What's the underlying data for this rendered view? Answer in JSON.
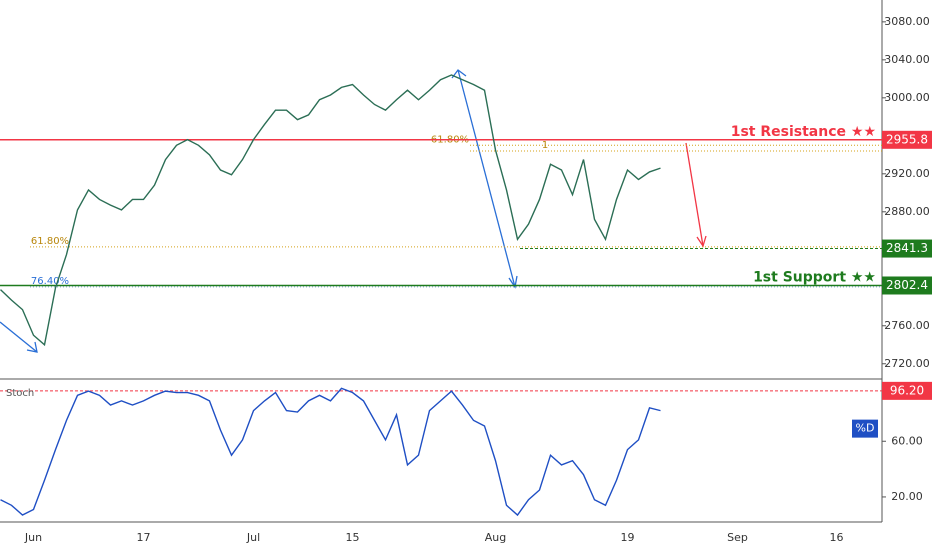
{
  "chart_data": [
    {
      "type": "line",
      "series": [
        {
          "color": "#2b6e55",
          "values": [
            2798,
            2787,
            2777,
            2750,
            2740,
            2800,
            2835,
            2882,
            2903,
            2893,
            2887,
            2882,
            2893,
            2893,
            2908,
            2935,
            2950,
            2956,
            2950,
            2940,
            2924,
            2919,
            2935,
            2956,
            2972,
            2987,
            2987,
            2977,
            2982,
            2998,
            3003,
            3011,
            3014,
            3003,
            2993,
            2987,
            2998,
            3008,
            2998,
            3008,
            3019,
            3024,
            3019,
            3014,
            3008,
            2945,
            2903,
            2851,
            2867,
            2893,
            2930,
            2924,
            2898,
            2935,
            2872,
            2851,
            2893,
            2924,
            2914,
            2922,
            2926,
            null,
            null,
            null,
            null,
            null,
            null,
            null,
            null,
            null,
            null,
            null,
            null,
            null,
            null,
            null,
            null,
            null,
            null,
            null
          ]
        }
      ],
      "ylim": [
        2705,
        3103
      ],
      "yticks": [
        {
          "value": 2720,
          "label": "2720.00"
        },
        {
          "value": 2760,
          "label": "2760.00"
        },
        {
          "value": 2800,
          "label": "2800.00"
        },
        {
          "value": 2840,
          "label": "2840.00"
        },
        {
          "value": 2880,
          "label": "2880.00"
        },
        {
          "value": 2920,
          "label": "2920.00"
        },
        {
          "value": 2960,
          "label": "2960.00"
        },
        {
          "value": 3000,
          "label": "3000.00"
        },
        {
          "value": 3040,
          "label": "3040.00"
        },
        {
          "value": 3080,
          "label": "3080.00"
        }
      ],
      "levels": [
        {
          "value": 2955.8,
          "label": "1st Resistance ★★",
          "color": "#f23645"
        },
        {
          "value": 2802.4,
          "label": "1st Support ★★",
          "color": "#1e7b1e"
        }
      ],
      "target": {
        "value": 2841.3,
        "color": "#1e7b1e"
      },
      "fibs": [
        {
          "level": 2843,
          "text": "61.80%"
        },
        {
          "level": 2950,
          "text": "61.80%"
        },
        {
          "level": 2944,
          "text": "1"
        },
        {
          "level": 2801,
          "text": "76.40%"
        }
      ]
    },
    {
      "type": "line",
      "title": "Stoch",
      "categories": [
        null,
        null,
        null,
        "Jun",
        null,
        null,
        null,
        null,
        null,
        null,
        null,
        null,
        null,
        "17",
        null,
        null,
        null,
        null,
        null,
        null,
        null,
        null,
        null,
        "Jul",
        null,
        null,
        null,
        null,
        null,
        null,
        null,
        null,
        "15",
        null,
        null,
        null,
        null,
        null,
        null,
        null,
        null,
        null,
        null,
        null,
        null,
        "Aug",
        null,
        null,
        null,
        null,
        null,
        null,
        null,
        null,
        null,
        null,
        null,
        "19",
        null,
        null,
        null,
        null,
        null,
        null,
        null,
        null,
        null,
        "Sep",
        null,
        null,
        null,
        null,
        null,
        null,
        null,
        null,
        "16",
        null,
        null,
        null
      ],
      "series": [
        {
          "name": "%D",
          "color": "#1f4fc4",
          "values": [
            18,
            14,
            7,
            11,
            32,
            54,
            75,
            93,
            96,
            93,
            86,
            89,
            86,
            89,
            93,
            96,
            95,
            95,
            93,
            89,
            68,
            50,
            61,
            82,
            89,
            95,
            82,
            81,
            89,
            93,
            89,
            98,
            95,
            89,
            75,
            61,
            79,
            43,
            50,
            82,
            89,
            96,
            86,
            75,
            71,
            46,
            14,
            7,
            18,
            25,
            50,
            43,
            46,
            36,
            18,
            14,
            32,
            54,
            61,
            84,
            82,
            null,
            null,
            null,
            null,
            null,
            null,
            null,
            null,
            null,
            null,
            null,
            null,
            null,
            null,
            null,
            null,
            null,
            null,
            null
          ]
        }
      ],
      "ylim": [
        2,
        104
      ],
      "yticks": [
        {
          "value": 20,
          "label": "20.00"
        },
        {
          "value": 60,
          "label": "60.00"
        }
      ],
      "level": {
        "value": 96.2,
        "label": "96.20",
        "color": "#f23645"
      }
    }
  ]
}
